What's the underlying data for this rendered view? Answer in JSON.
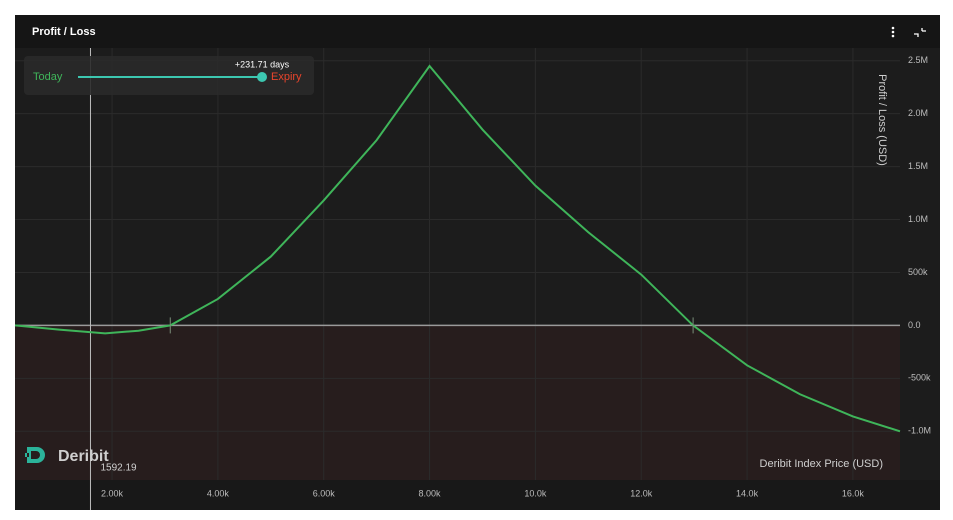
{
  "chart_data": {
    "type": "line",
    "title": "Profit / Loss",
    "ylabel": "Profit / Loss  (USD)",
    "xlabel": "Deribit Index Price  (USD)",
    "brand": "Deribit",
    "slider": {
      "start_label": "Today",
      "end_label": "Expiry",
      "offset_label": "+231.71 days"
    },
    "crosshair_x": 1592.19,
    "x": [
      166,
      1000,
      1870,
      2500,
      3100,
      4000,
      5000,
      6000,
      7000,
      8000,
      9000,
      10000,
      11000,
      12000,
      12980,
      14000,
      15000,
      16000,
      16890
    ],
    "series": [
      {
        "name": "Profit / Loss",
        "color": "#3fb55a",
        "values": [
          0,
          -40000,
          -75000,
          -50000,
          0,
          250000,
          650000,
          1180000,
          1750000,
          2450000,
          1850000,
          1320000,
          880000,
          480000,
          0,
          -377000,
          -650000,
          -860000,
          -1000000
        ]
      }
    ],
    "breakeven_points": [
      3100,
      12980
    ],
    "xlim": [
      166,
      16890
    ],
    "ylim": [
      -1460000,
      2620000
    ],
    "xticks": [
      {
        "value": 2000,
        "label": "2.00k"
      },
      {
        "value": 4000,
        "label": "4.00k"
      },
      {
        "value": 6000,
        "label": "6.00k"
      },
      {
        "value": 8000,
        "label": "8.00k"
      },
      {
        "value": 10000,
        "label": "10.0k"
      },
      {
        "value": 12000,
        "label": "12.0k"
      },
      {
        "value": 14000,
        "label": "14.0k"
      },
      {
        "value": 16000,
        "label": "16.0k"
      }
    ],
    "yticks": [
      {
        "value": 2500000,
        "label": "2.5M"
      },
      {
        "value": 2000000,
        "label": "2.0M"
      },
      {
        "value": 1500000,
        "label": "1.5M"
      },
      {
        "value": 1000000,
        "label": "1.0M"
      },
      {
        "value": 500000,
        "label": "500k"
      },
      {
        "value": 0,
        "label": "0.0"
      },
      {
        "value": -500000,
        "label": "-500k"
      },
      {
        "value": -1000000,
        "label": "-1.0M"
      }
    ],
    "grid": true
  }
}
